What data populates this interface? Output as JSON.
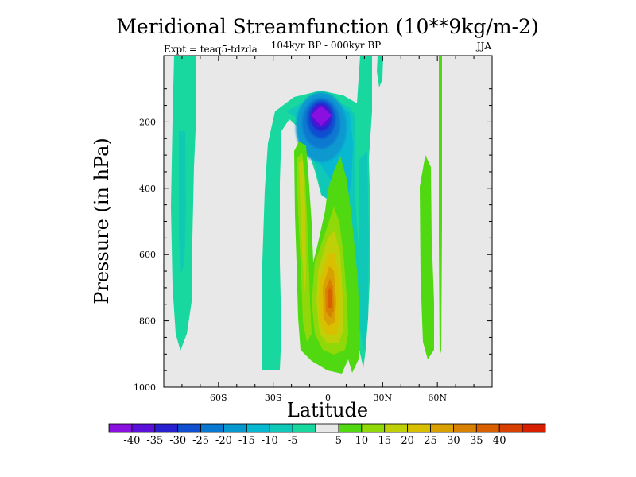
{
  "chart_data": {
    "type": "heatmap",
    "title": "Meridional Streamfunction (10**9kg/m-2)",
    "subtitle": "104kyr BP - 000kyr BP",
    "left_label": "Expt = teaq5-tdzda",
    "season": "JJA",
    "xlabel": "Latitude",
    "ylabel": "Pressure (in hPa)",
    "xlim": [
      -90,
      90
    ],
    "ylim": [
      1000,
      0
    ],
    "x_ticks": [
      -60,
      -30,
      0,
      30,
      60
    ],
    "x_tick_labels": [
      "60S",
      "30S",
      "0",
      "30N",
      "60N"
    ],
    "y_ticks": [
      200,
      400,
      600,
      800,
      1000
    ],
    "y_tick_labels": [
      "200",
      "400",
      "600",
      "800",
      "1000"
    ],
    "colorbar": {
      "labels": [
        "-40",
        "-35",
        "-30",
        "-25",
        "-20",
        "-15",
        "-10",
        "-5",
        "5",
        "10",
        "15",
        "20",
        "25",
        "30",
        "35",
        "40"
      ],
      "colors": [
        "#8a10e0",
        "#5a10d8",
        "#2820d0",
        "#1050d0",
        "#0878d0",
        "#0898d0",
        "#08b8d0",
        "#10c8b8",
        "#18d8a0",
        "#e8e8e8",
        "#50d810",
        "#90d808",
        "#c0d008",
        "#d8c000",
        "#d8a000",
        "#d88000",
        "#d86000",
        "#d84000",
        "#d82000"
      ]
    },
    "features": [
      {
        "name": "negative-max-upper-equatorial",
        "lat": 0,
        "p": 180,
        "value": -40,
        "color": "#8a10e0"
      },
      {
        "name": "positive-max-lower-equatorial",
        "lat": 0,
        "p": 700,
        "value": 35,
        "color": "#d86000"
      }
    ]
  }
}
